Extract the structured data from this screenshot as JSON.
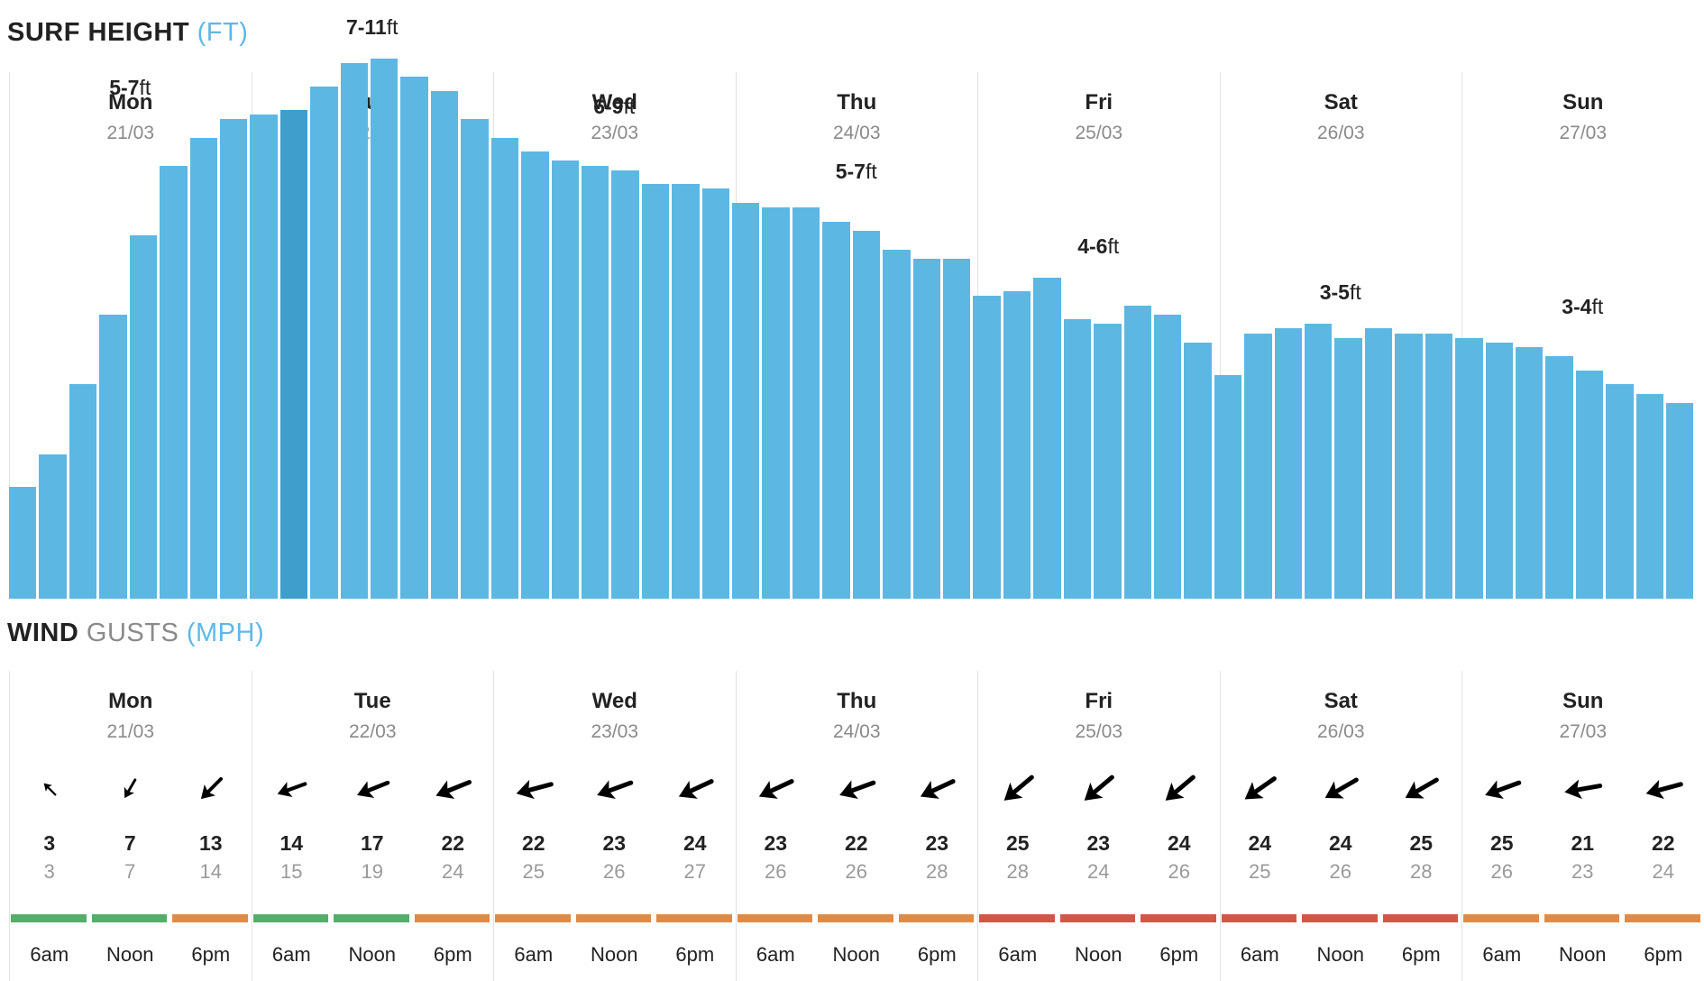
{
  "surf": {
    "title": "SURF HEIGHT",
    "unit": "(FT)"
  },
  "wind": {
    "title": "WIND",
    "subtitle": "GUSTS",
    "unit": "(MPH)"
  },
  "days": [
    {
      "name": "Mon",
      "date": "21/03",
      "peak": "5-7",
      "peak_unit": "ft"
    },
    {
      "name": "Tue",
      "date": "22/03",
      "peak": "7-11",
      "peak_unit": "ft"
    },
    {
      "name": "Wed",
      "date": "23/03",
      "peak": "6-9",
      "peak_unit": "ft"
    },
    {
      "name": "Thu",
      "date": "24/03",
      "peak": "5-7",
      "peak_unit": "ft"
    },
    {
      "name": "Fri",
      "date": "25/03",
      "peak": "4-6",
      "peak_unit": "ft"
    },
    {
      "name": "Sat",
      "date": "26/03",
      "peak": "3-5",
      "peak_unit": "ft"
    },
    {
      "name": "Sun",
      "date": "27/03",
      "peak": "3-4",
      "peak_unit": "ft"
    }
  ],
  "chart_data": {
    "type": "bar",
    "title": "SURF HEIGHT (FT)",
    "ylim": [
      0,
      12
    ],
    "selected_index": 9,
    "values": [
      2.4,
      3.1,
      4.6,
      6.1,
      7.8,
      9.3,
      9.9,
      10.3,
      10.4,
      10.5,
      11.0,
      11.5,
      11.6,
      11.2,
      10.9,
      10.3,
      9.9,
      9.6,
      9.4,
      9.3,
      9.2,
      8.9,
      8.9,
      8.8,
      8.5,
      8.4,
      8.4,
      8.1,
      7.9,
      7.5,
      7.3,
      7.3,
      6.5,
      6.6,
      6.9,
      6.0,
      5.9,
      6.3,
      6.1,
      5.5,
      4.8,
      5.7,
      5.8,
      5.9,
      5.6,
      5.8,
      5.7,
      5.7,
      5.6,
      5.5,
      5.4,
      5.2,
      4.9,
      4.6,
      4.4,
      4.2
    ]
  },
  "wind_data": {
    "times": [
      "6am",
      "Noon",
      "6pm"
    ],
    "rating_colors": {
      "green": "#56ad6a",
      "orange": "#e08a45",
      "red": "#d65447"
    },
    "slots": [
      {
        "speed": "3",
        "gust": "3",
        "dir": 135,
        "rating": "green"
      },
      {
        "speed": "7",
        "gust": "7",
        "dir": 30,
        "rating": "green"
      },
      {
        "speed": "13",
        "gust": "14",
        "dir": 45,
        "rating": "orange"
      },
      {
        "speed": "14",
        "gust": "15",
        "dir": 70,
        "rating": "green"
      },
      {
        "speed": "17",
        "gust": "19",
        "dir": 68,
        "rating": "green"
      },
      {
        "speed": "22",
        "gust": "24",
        "dir": 68,
        "rating": "orange"
      },
      {
        "speed": "22",
        "gust": "25",
        "dir": 75,
        "rating": "orange"
      },
      {
        "speed": "23",
        "gust": "26",
        "dir": 70,
        "rating": "orange"
      },
      {
        "speed": "24",
        "gust": "27",
        "dir": 65,
        "rating": "orange"
      },
      {
        "speed": "23",
        "gust": "26",
        "dir": 65,
        "rating": "orange"
      },
      {
        "speed": "22",
        "gust": "26",
        "dir": 70,
        "rating": "orange"
      },
      {
        "speed": "23",
        "gust": "28",
        "dir": 65,
        "rating": "orange"
      },
      {
        "speed": "25",
        "gust": "28",
        "dir": 50,
        "rating": "red"
      },
      {
        "speed": "23",
        "gust": "24",
        "dir": 50,
        "rating": "red"
      },
      {
        "speed": "24",
        "gust": "26",
        "dir": 50,
        "rating": "red"
      },
      {
        "speed": "24",
        "gust": "25",
        "dir": 55,
        "rating": "red"
      },
      {
        "speed": "24",
        "gust": "26",
        "dir": 60,
        "rating": "red"
      },
      {
        "speed": "25",
        "gust": "28",
        "dir": 60,
        "rating": "red"
      },
      {
        "speed": "25",
        "gust": "26",
        "dir": 70,
        "rating": "orange"
      },
      {
        "speed": "21",
        "gust": "23",
        "dir": 80,
        "rating": "orange"
      },
      {
        "speed": "22",
        "gust": "24",
        "dir": 75,
        "rating": "orange"
      }
    ]
  }
}
